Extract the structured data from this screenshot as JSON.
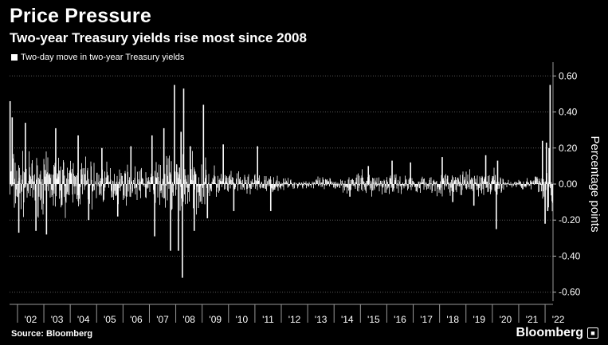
{
  "header": {
    "title": "Price Pressure",
    "subtitle": "Two-year Treasury yields rise most since 2008"
  },
  "legend": {
    "label": "Two-day move in two-year Treasury yields"
  },
  "footer": {
    "source": "Source: Bloomberg",
    "brand": "Bloomberg"
  },
  "chart_data": {
    "type": "bar",
    "title": "Price Pressure",
    "subtitle": "Two-year Treasury yields rise most since 2008",
    "ylabel": "Percentage points",
    "xlabel": "",
    "series": [
      {
        "name": "Two-day move in two-year Treasury yields",
        "color": "#ffffff"
      }
    ],
    "ylim": [
      -0.65,
      0.65
    ],
    "y_ticks": [
      0.6,
      0.4,
      0.2,
      0.0,
      -0.2,
      -0.4,
      -0.6
    ],
    "y_tick_labels": [
      "0.60",
      "0.40",
      "0.20",
      "0.00",
      "-0.20",
      "-0.40",
      "-0.60"
    ],
    "x_range": [
      2001.7,
      2022.3
    ],
    "x_ticks": [
      2002,
      2003,
      2004,
      2005,
      2006,
      2007,
      2008,
      2009,
      2010,
      2011,
      2012,
      2013,
      2014,
      2015,
      2016,
      2017,
      2018,
      2019,
      2020,
      2021,
      2022
    ],
    "x_tick_labels": [
      "'02",
      "'03",
      "'04",
      "'05",
      "'06",
      "'07",
      "'08",
      "'09",
      "'10",
      "'11",
      "'12",
      "'13",
      "'14",
      "'15",
      "'16",
      "'17",
      "'18",
      "'19",
      "'20",
      "'21",
      "'22"
    ],
    "grid": true,
    "y_axis_side": "right",
    "legend_position": "top-left",
    "volatility_envelope": [
      [
        2001.7,
        0.17
      ],
      [
        2002.0,
        0.14
      ],
      [
        2002.5,
        0.12
      ],
      [
        2003.0,
        0.12
      ],
      [
        2003.5,
        0.14
      ],
      [
        2004.0,
        0.12
      ],
      [
        2004.5,
        0.13
      ],
      [
        2005.0,
        0.09
      ],
      [
        2005.5,
        0.09
      ],
      [
        2006.0,
        0.08
      ],
      [
        2006.5,
        0.07
      ],
      [
        2007.0,
        0.08
      ],
      [
        2007.5,
        0.13
      ],
      [
        2008.0,
        0.16
      ],
      [
        2008.5,
        0.14
      ],
      [
        2009.0,
        0.1
      ],
      [
        2009.5,
        0.08
      ],
      [
        2010.0,
        0.05
      ],
      [
        2010.5,
        0.05
      ],
      [
        2011.0,
        0.05
      ],
      [
        2011.5,
        0.04
      ],
      [
        2012.0,
        0.03
      ],
      [
        2012.5,
        0.02
      ],
      [
        2013.0,
        0.02
      ],
      [
        2013.5,
        0.03
      ],
      [
        2014.0,
        0.03
      ],
      [
        2014.5,
        0.04
      ],
      [
        2015.0,
        0.05
      ],
      [
        2015.5,
        0.05
      ],
      [
        2016.0,
        0.05
      ],
      [
        2016.5,
        0.04
      ],
      [
        2017.0,
        0.04
      ],
      [
        2017.5,
        0.04
      ],
      [
        2018.0,
        0.05
      ],
      [
        2018.5,
        0.05
      ],
      [
        2019.0,
        0.05
      ],
      [
        2019.5,
        0.06
      ],
      [
        2020.0,
        0.05
      ],
      [
        2020.25,
        0.08
      ],
      [
        2020.5,
        0.02
      ],
      [
        2021.0,
        0.02
      ],
      [
        2021.5,
        0.03
      ],
      [
        2021.8,
        0.06
      ],
      [
        2022.0,
        0.1
      ],
      [
        2022.3,
        0.12
      ]
    ],
    "notable_moves": [
      {
        "x": 2001.72,
        "y": 0.46
      },
      {
        "x": 2001.8,
        "y": 0.37
      },
      {
        "x": 2002.05,
        "y": -0.27
      },
      {
        "x": 2002.3,
        "y": 0.34
      },
      {
        "x": 2002.7,
        "y": -0.26
      },
      {
        "x": 2003.1,
        "y": -0.28
      },
      {
        "x": 2003.45,
        "y": 0.31
      },
      {
        "x": 2004.3,
        "y": 0.27
      },
      {
        "x": 2004.7,
        "y": -0.2
      },
      {
        "x": 2005.2,
        "y": 0.2
      },
      {
        "x": 2005.8,
        "y": -0.18
      },
      {
        "x": 2006.3,
        "y": 0.21
      },
      {
        "x": 2007.1,
        "y": 0.27
      },
      {
        "x": 2007.2,
        "y": -0.29
      },
      {
        "x": 2007.55,
        "y": 0.31
      },
      {
        "x": 2007.8,
        "y": -0.37
      },
      {
        "x": 2007.95,
        "y": 0.55
      },
      {
        "x": 2008.1,
        "y": -0.37
      },
      {
        "x": 2008.2,
        "y": 0.29
      },
      {
        "x": 2008.25,
        "y": -0.52
      },
      {
        "x": 2008.3,
        "y": 0.53
      },
      {
        "x": 2008.55,
        "y": 0.21
      },
      {
        "x": 2008.7,
        "y": -0.26
      },
      {
        "x": 2009.05,
        "y": 0.44
      },
      {
        "x": 2009.2,
        "y": -0.19
      },
      {
        "x": 2009.8,
        "y": 0.22
      },
      {
        "x": 2010.2,
        "y": -0.15
      },
      {
        "x": 2011.1,
        "y": 0.21
      },
      {
        "x": 2011.6,
        "y": -0.15
      },
      {
        "x": 2014.6,
        "y": -0.07
      },
      {
        "x": 2015.3,
        "y": 0.1
      },
      {
        "x": 2016.2,
        "y": 0.13
      },
      {
        "x": 2016.9,
        "y": 0.12
      },
      {
        "x": 2018.1,
        "y": 0.15
      },
      {
        "x": 2018.5,
        "y": -0.1
      },
      {
        "x": 2019.3,
        "y": -0.12
      },
      {
        "x": 2019.75,
        "y": 0.16
      },
      {
        "x": 2020.15,
        "y": -0.25
      },
      {
        "x": 2020.2,
        "y": 0.13
      },
      {
        "x": 2021.9,
        "y": 0.24
      },
      {
        "x": 2022.0,
        "y": -0.22
      },
      {
        "x": 2022.05,
        "y": 0.23
      },
      {
        "x": 2022.1,
        "y": -0.15
      },
      {
        "x": 2022.15,
        "y": 0.2
      },
      {
        "x": 2022.19,
        "y": 0.55
      }
    ]
  }
}
